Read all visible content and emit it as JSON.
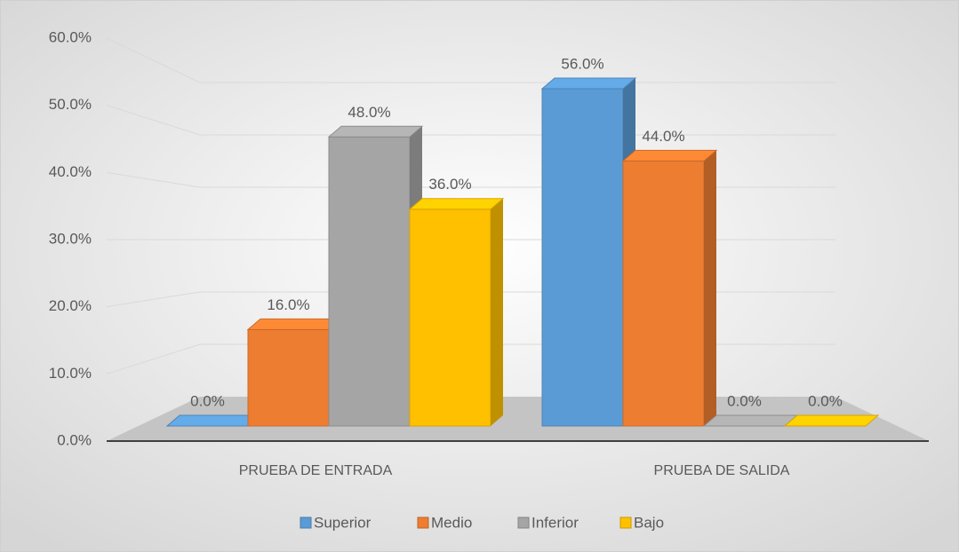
{
  "chart_data": {
    "type": "bar3d",
    "categories": [
      "PRUEBA DE ENTRADA",
      "PRUEBA DE SALIDA"
    ],
    "series": [
      {
        "name": "Superior",
        "color": "#5b9bd5",
        "values": [
          0,
          56
        ],
        "value_labels": [
          "0.0%",
          "56.0%"
        ]
      },
      {
        "name": "Medio",
        "color": "#ed7d31",
        "values": [
          16,
          44
        ],
        "value_labels": [
          "16.0%",
          "44.0%"
        ]
      },
      {
        "name": "Inferior",
        "color": "#a5a5a5",
        "values": [
          48,
          0
        ],
        "value_labels": [
          "48.0%",
          "0.0%"
        ]
      },
      {
        "name": "Bajo",
        "color": "#ffc000",
        "values": [
          36,
          0
        ],
        "value_labels": [
          "36.0%",
          "0.0%"
        ]
      }
    ],
    "ylim": [
      0,
      60
    ],
    "yticks": [
      {
        "value": 0,
        "label": "0.0%"
      },
      {
        "value": 10,
        "label": "10.0%"
      },
      {
        "value": 20,
        "label": "20.0%"
      },
      {
        "value": 30,
        "label": "30.0%"
      },
      {
        "value": 40,
        "label": "40.0%"
      },
      {
        "value": 50,
        "label": "50.0%"
      },
      {
        "value": 60,
        "label": "60.0%"
      }
    ],
    "grid": true,
    "legend": "bottom"
  }
}
